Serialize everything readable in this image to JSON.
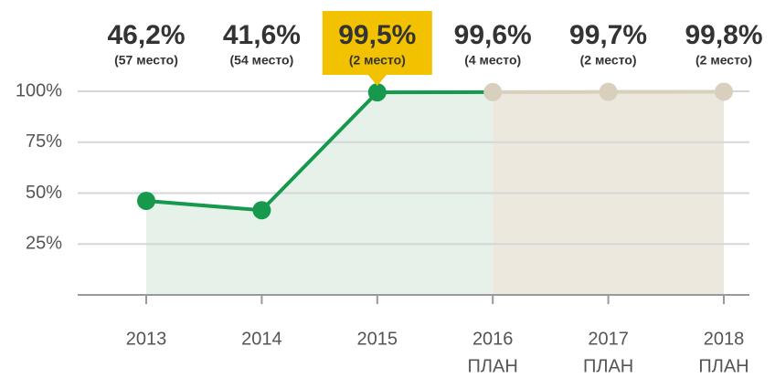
{
  "chart_data": {
    "type": "line",
    "categories": [
      "2013",
      "2014",
      "2015",
      "2016",
      "2017",
      "2018"
    ],
    "category_notes": [
      null,
      null,
      null,
      "ПЛАН",
      "ПЛАН",
      "ПЛАН"
    ],
    "series": [
      {
        "color": "#16994c",
        "plan_color": "#d9cfbd",
        "values": [
          46.2,
          41.6,
          99.5,
          99.6,
          99.7,
          99.8
        ],
        "value_labels": [
          "46,2%",
          "41,6%",
          "99,5%",
          "99,6%",
          "99,7%",
          "99,8%"
        ],
        "rank_labels": [
          "(57 место)",
          "(54 место)",
          "(2 место)",
          "(4 место)",
          "(2 место)",
          "(2 место)"
        ]
      }
    ],
    "plan_start_index": 3,
    "highlight_index": 2,
    "highlight_color": "#f2c200",
    "area_colors": [
      "#e5f1e9",
      "#ece8de"
    ],
    "ylim": [
      0,
      100
    ],
    "yticks": [
      {
        "value": 25,
        "label": "25%"
      },
      {
        "value": 50,
        "label": "50%"
      },
      {
        "value": 75,
        "label": "75%"
      },
      {
        "value": 100,
        "label": "100%"
      }
    ],
    "grid": true
  }
}
